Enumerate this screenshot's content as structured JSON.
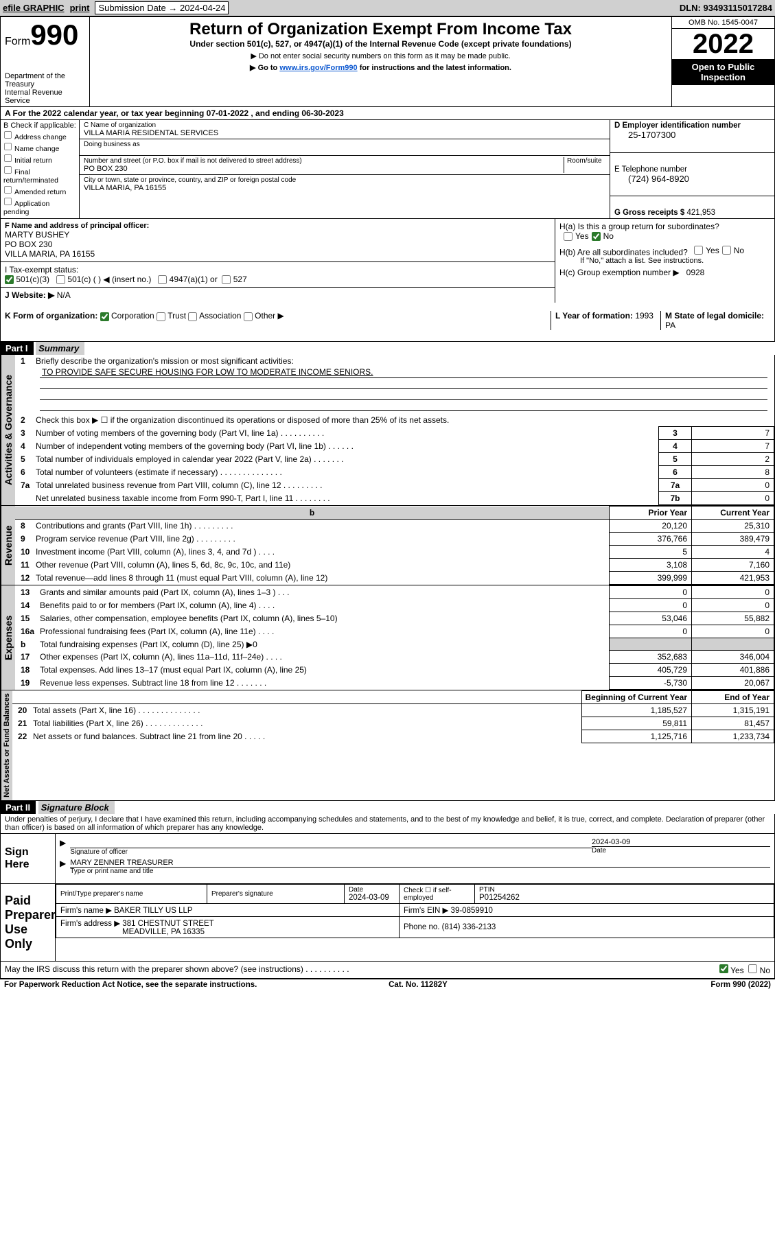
{
  "toolbar": {
    "efile": "efile GRAPHIC",
    "print": "print",
    "sub_lbl": "Submission Date → 2024-04-24",
    "dln": "DLN: 93493115017284"
  },
  "header": {
    "form_word": "Form",
    "form_num": "990",
    "title": "Return of Organization Exempt From Income Tax",
    "subtitle": "Under section 501(c), 527, or 4947(a)(1) of the Internal Revenue Code (except private foundations)",
    "note1": "▶ Do not enter social security numbers on this form as it may be made public.",
    "note2_a": "▶ Go to ",
    "note2_link": "www.irs.gov/Form990",
    "note2_b": " for instructions and the latest information.",
    "dept": "Department of the Treasury",
    "irs": "Internal Revenue Service",
    "omb": "OMB No. 1545-0047",
    "year": "2022",
    "inspect": "Open to Public Inspection"
  },
  "calyr_line": "A For the 2022 calendar year, or tax year beginning 07-01-2022   , and ending 06-30-2023",
  "boxB": {
    "hdr": "B Check if applicable:",
    "items": [
      "Address change",
      "Name change",
      "Initial return",
      "Final return/terminated",
      "Amended return",
      "Application pending"
    ]
  },
  "boxC": {
    "name_lbl": "C Name of organization",
    "name": "VILLA MARIA RESIDENTAL SERVICES",
    "dba_lbl": "Doing business as",
    "dba": "",
    "addr_lbl": "Number and street (or P.O. box if mail is not delivered to street address)",
    "suite_lbl": "Room/suite",
    "addr": "PO BOX 230",
    "city_lbl": "City or town, state or province, country, and ZIP or foreign postal code",
    "city": "VILLA MARIA, PA  16155"
  },
  "boxD": {
    "ein_lbl": "D Employer identification number",
    "ein": "25-1707300",
    "tel_lbl": "E Telephone number",
    "tel": "(724) 964-8920",
    "gross_lbl": "G Gross receipts $",
    "gross": "421,953"
  },
  "boxF": {
    "lbl": "F  Name and address of principal officer:",
    "name": "MARTY BUSHEY",
    "addr1": "PO BOX 230",
    "addr2": "VILLA MARIA, PA  16155"
  },
  "boxH": {
    "ha": "H(a)  Is this a group return for subordinates?",
    "hb": "H(b)  Are all subordinates included?",
    "hb_note": "If \"No,\" attach a list. See instructions.",
    "hc_lbl": "H(c)  Group exemption number ▶",
    "hc_val": "0928",
    "yes": "Yes",
    "no": "No"
  },
  "lineI": {
    "lbl": "I     Tax-exempt status:",
    "o1": "501(c)(3)",
    "o2": "501(c) (   ) ◀ (insert no.)",
    "o3": "4947(a)(1) or",
    "o4": "527"
  },
  "lineJ": {
    "lbl": "J    Website: ▶",
    "val": "N/A"
  },
  "lineK": {
    "lbl": "K Form of organization:",
    "o1": "Corporation",
    "o2": "Trust",
    "o3": "Association",
    "o4": "Other ▶",
    "l_lbl": "L Year of formation:",
    "l_val": "1993",
    "m_lbl": "M State of legal domicile:",
    "m_val": "PA"
  },
  "partI": {
    "hdr": "Part I",
    "title": "Summary",
    "q1": "Briefly describe the organization's mission or most significant activities:",
    "mission": "TO PROVIDE SAFE SECURE HOUSING FOR LOW TO MODERATE INCOME SENIORS.",
    "q2": "Check this box ▶ ☐  if the organization discontinued its operations or disposed of more than 25% of its net assets.",
    "q3": "Number of voting members of the governing body (Part VI, line 1a)  .    .    .    .    .    .    .    .    .    .",
    "q4": "Number of independent voting members of the governing body (Part VI, line 1b)   .    .    .    .    .    .",
    "q5": "Total number of individuals employed in calendar year 2022 (Part V, line 2a)   .    .    .    .    .    .    .",
    "q6": "Total number of volunteers (estimate if necessary)   .    .    .    .    .    .    .    .    .    .    .    .    .    .",
    "q7a": "Total unrelated business revenue from Part VIII, column (C), line 12  .    .    .    .    .    .    .    .    .",
    "q7b": "Net unrelated business taxable income from Form 990-T, Part I, line 11   .    .    .    .    .    .    .    .",
    "v3": "7",
    "v4": "7",
    "v5": "2",
    "v6": "8",
    "v7a": "0",
    "v7b": "0",
    "pyh": "Prior Year",
    "cyh": "Current Year",
    "rows_rev": [
      {
        "n": "8",
        "t": "Contributions and grants (Part VIII, line 1h)   .    .    .    .    .    .    .    .    .",
        "py": "20,120",
        "cy": "25,310"
      },
      {
        "n": "9",
        "t": "Program service revenue (Part VIII, line 2g)   .    .    .    .    .    .    .    .    .",
        "py": "376,766",
        "cy": "389,479"
      },
      {
        "n": "10",
        "t": "Investment income (Part VIII, column (A), lines 3, 4, and 7d )   .    .    .    .",
        "py": "5",
        "cy": "4"
      },
      {
        "n": "11",
        "t": "Other revenue (Part VIII, column (A), lines 5, 6d, 8c, 9c, 10c, and 11e)",
        "py": "3,108",
        "cy": "7,160"
      },
      {
        "n": "12",
        "t": "Total revenue—add lines 8 through 11 (must equal Part VIII, column (A), line 12)",
        "py": "399,999",
        "cy": "421,953"
      }
    ],
    "rows_exp": [
      {
        "n": "13",
        "t": "Grants and similar amounts paid (Part IX, column (A), lines 1–3 )   .    .    .",
        "py": "0",
        "cy": "0"
      },
      {
        "n": "14",
        "t": "Benefits paid to or for members (Part IX, column (A), line 4)   .    .    .    .",
        "py": "0",
        "cy": "0"
      },
      {
        "n": "15",
        "t": "Salaries, other compensation, employee benefits (Part IX, column (A), lines 5–10)",
        "py": "53,046",
        "cy": "55,882"
      },
      {
        "n": "16a",
        "t": "Professional fundraising fees (Part IX, column (A), line 11e)   .    .    .    .",
        "py": "0",
        "cy": "0"
      },
      {
        "n": "b",
        "t": "Total fundraising expenses (Part IX, column (D), line 25) ▶0",
        "py": "",
        "cy": ""
      },
      {
        "n": "17",
        "t": "Other expenses (Part IX, column (A), lines 11a–11d, 11f–24e)   .    .    .    .",
        "py": "352,683",
        "cy": "346,004"
      },
      {
        "n": "18",
        "t": "Total expenses. Add lines 13–17 (must equal Part IX, column (A), line 25)",
        "py": "405,729",
        "cy": "401,886"
      },
      {
        "n": "19",
        "t": "Revenue less expenses. Subtract line 18 from line 12  .    .    .    .    .    .    .",
        "py": "-5,730",
        "cy": "20,067"
      }
    ],
    "bcy": "Beginning of Current Year",
    "eoy": "End of Year",
    "rows_na": [
      {
        "n": "20",
        "t": "Total assets (Part X, line 16)  .    .    .    .    .    .    .    .    .    .    .    .    .    .",
        "py": "1,185,527",
        "cy": "1,315,191"
      },
      {
        "n": "21",
        "t": "Total liabilities (Part X, line 26)  .    .    .    .    .    .    .    .    .    .    .    .    .",
        "py": "59,811",
        "cy": "81,457"
      },
      {
        "n": "22",
        "t": "Net assets or fund balances. Subtract line 21 from line 20  .    .    .    .    .",
        "py": "1,125,716",
        "cy": "1,233,734"
      }
    ],
    "side_gov": "Activities & Governance",
    "side_rev": "Revenue",
    "side_exp": "Expenses",
    "side_na": "Net Assets or Fund Balances"
  },
  "partII": {
    "hdr": "Part II",
    "title": "Signature Block",
    "decl": "Under penalties of perjury, I declare that I have examined this return, including accompanying schedules and statements, and to the best of my knowledge and belief, it is true, correct, and complete. Declaration of preparer (other than officer) is based on all information of which preparer has any knowledge.",
    "sign_here": "Sign Here",
    "sig_off": "Signature of officer",
    "sig_date": "2024-03-09",
    "date_lbl": "Date",
    "officer": "MARY ZENNER  TREASURER",
    "type_lbl": "Type or print name and title",
    "paid": "Paid Preparer Use Only",
    "col_pt": "Print/Type preparer's name",
    "col_sig": "Preparer's signature",
    "col_dt": "Date",
    "dt_val": "2024-03-09",
    "col_chk": "Check ☐ if self-employed",
    "col_ptin": "PTIN",
    "ptin": "P01254262",
    "firm_nm_lbl": "Firm's name     ▶",
    "firm_nm": "BAKER TILLY US LLP",
    "firm_ein_lbl": "Firm's EIN ▶",
    "firm_ein": "39-0859910",
    "firm_addr_lbl": "Firm's address ▶",
    "firm_addr1": "381 CHESTNUT STREET",
    "firm_addr2": "MEADVILLE, PA  16335",
    "phone_lbl": "Phone no.",
    "phone": "(814) 336-2133",
    "discuss": "May the IRS discuss this return with the preparer shown above? (see instructions)   .    .    .    .    .    .    .    .    .    .",
    "yes": "Yes",
    "no": "No"
  },
  "footer": {
    "pra": "For Paperwork Reduction Act Notice, see the separate instructions.",
    "cat": "Cat. No. 11282Y",
    "form": "Form 990 (2022)"
  }
}
